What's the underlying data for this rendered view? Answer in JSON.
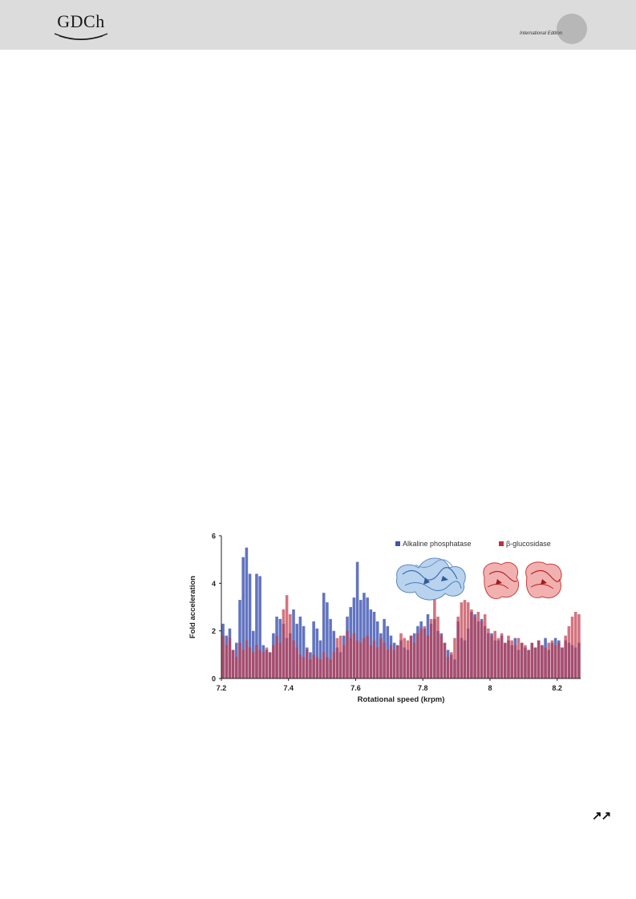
{
  "header": {
    "logo_text": "GDCh",
    "edition": "International Edition"
  },
  "footer": {
    "arrows": "↗↗"
  },
  "colors": {
    "blue": "#5468b8",
    "red": "#c43a48",
    "header_bg": "#dcdcdc"
  },
  "chart_data": {
    "type": "bar",
    "xlabel": "Rotational speed (krpm)",
    "ylabel": "Fold acceleration",
    "xlim": [
      7.2,
      8.27
    ],
    "ylim": [
      0,
      6
    ],
    "x_ticks": [
      "7.2",
      "7.4",
      "7.6",
      "7.8",
      "8",
      "8.2"
    ],
    "y_ticks": [
      "0",
      "2",
      "4",
      "6"
    ],
    "grid": false,
    "legend_position": "top-right",
    "series": [
      {
        "name": "Alkaline phosphatase",
        "color": "#5468b8",
        "x": [
          7.2,
          7.21,
          7.22,
          7.23,
          7.24,
          7.25,
          7.26,
          7.27,
          7.28,
          7.29,
          7.3,
          7.31,
          7.32,
          7.33,
          7.34,
          7.35,
          7.36,
          7.37,
          7.38,
          7.39,
          7.4,
          7.41,
          7.42,
          7.43,
          7.44,
          7.45,
          7.46,
          7.47,
          7.48,
          7.49,
          7.5,
          7.51,
          7.52,
          7.53,
          7.54,
          7.55,
          7.56,
          7.57,
          7.58,
          7.59,
          7.6,
          7.61,
          7.62,
          7.63,
          7.64,
          7.65,
          7.66,
          7.67,
          7.68,
          7.69,
          7.7,
          7.71,
          7.72,
          7.73,
          7.74,
          7.75,
          7.76,
          7.77,
          7.78,
          7.79,
          7.8,
          7.81,
          7.82,
          7.83,
          7.84,
          7.85,
          7.86,
          7.87,
          7.88,
          7.89,
          7.9,
          7.91,
          7.92,
          7.93,
          7.94,
          7.95,
          7.96,
          7.97,
          7.98,
          7.99,
          8.0,
          8.01,
          8.02,
          8.03,
          8.04,
          8.05,
          8.06,
          8.07,
          8.08,
          8.09,
          8.1,
          8.11,
          8.12,
          8.13,
          8.14,
          8.15,
          8.16,
          8.17,
          8.18,
          8.19,
          8.2,
          8.21,
          8.22,
          8.23,
          8.24,
          8.25,
          8.26
        ],
        "values": [
          2.3,
          1.8,
          2.1,
          1.2,
          1.5,
          3.3,
          5.1,
          5.5,
          4.4,
          2.0,
          4.4,
          4.3,
          1.4,
          1.2,
          1.1,
          1.9,
          2.6,
          2.5,
          2.3,
          1.7,
          1.9,
          2.9,
          2.3,
          2.6,
          2.2,
          1.3,
          1.1,
          2.4,
          2.1,
          1.6,
          3.6,
          3.2,
          2.5,
          2.0,
          1.3,
          1.1,
          1.8,
          2.6,
          3.0,
          3.4,
          4.9,
          3.3,
          3.6,
          3.4,
          2.9,
          2.8,
          2.4,
          1.9,
          2.5,
          2.2,
          1.8,
          1.5,
          1.4,
          1.6,
          1.3,
          1.2,
          1.8,
          1.9,
          2.2,
          2.4,
          2.1,
          2.7,
          2.3,
          2.5,
          2.0,
          1.9,
          1.5,
          1.2,
          1.0,
          0.8,
          2.4,
          1.7,
          1.6,
          2.1,
          2.8,
          2.7,
          2.4,
          2.5,
          2.2,
          1.9,
          1.9,
          1.6,
          1.6,
          1.8,
          1.5,
          1.6,
          1.4,
          1.7,
          1.2,
          1.5,
          1.3,
          1.2,
          1.5,
          1.3,
          1.6,
          1.4,
          1.7,
          1.2,
          1.5,
          1.7,
          1.6,
          1.3,
          1.6,
          1.5,
          1.4,
          1.3,
          1.5
        ]
      },
      {
        "name": "β-glucosidase",
        "color": "#c43a48",
        "x": [
          7.2,
          7.21,
          7.22,
          7.23,
          7.24,
          7.25,
          7.26,
          7.27,
          7.28,
          7.29,
          7.3,
          7.31,
          7.32,
          7.33,
          7.34,
          7.35,
          7.36,
          7.37,
          7.38,
          7.39,
          7.4,
          7.41,
          7.42,
          7.43,
          7.44,
          7.45,
          7.46,
          7.47,
          7.48,
          7.49,
          7.5,
          7.51,
          7.52,
          7.53,
          7.54,
          7.55,
          7.56,
          7.57,
          7.58,
          7.59,
          7.6,
          7.61,
          7.62,
          7.63,
          7.64,
          7.65,
          7.66,
          7.67,
          7.68,
          7.69,
          7.7,
          7.71,
          7.72,
          7.73,
          7.74,
          7.75,
          7.76,
          7.77,
          7.78,
          7.79,
          7.8,
          7.81,
          7.82,
          7.83,
          7.84,
          7.85,
          7.86,
          7.87,
          7.88,
          7.89,
          7.9,
          7.91,
          7.92,
          7.93,
          7.94,
          7.95,
          7.96,
          7.97,
          7.98,
          7.99,
          8.0,
          8.01,
          8.02,
          8.03,
          8.04,
          8.05,
          8.06,
          8.07,
          8.08,
          8.09,
          8.1,
          8.11,
          8.12,
          8.13,
          8.14,
          8.15,
          8.16,
          8.17,
          8.18,
          8.19,
          8.2,
          8.21,
          8.22,
          8.23,
          8.24,
          8.25,
          8.26
        ],
        "values": [
          1.8,
          1.4,
          1.7,
          1.2,
          0.9,
          1.5,
          1.2,
          1.6,
          1.3,
          1.1,
          1.4,
          1.2,
          1.1,
          1.3,
          1.1,
          1.4,
          1.8,
          1.5,
          2.9,
          3.5,
          2.7,
          1.6,
          1.3,
          1.0,
          0.9,
          1.2,
          0.8,
          1.0,
          0.9,
          0.8,
          1.1,
          0.9,
          0.8,
          1.1,
          1.7,
          1.8,
          1.4,
          2.0,
          1.7,
          1.9,
          1.6,
          1.5,
          1.7,
          1.8,
          1.4,
          1.6,
          1.3,
          1.7,
          1.5,
          1.2,
          1.4,
          1.2,
          1.4,
          1.9,
          1.7,
          1.6,
          1.8,
          1.5,
          1.9,
          2.1,
          2.2,
          1.8,
          2.5,
          3.6,
          2.6,
          1.8,
          1.5,
          0.9,
          1.1,
          1.7,
          2.6,
          3.2,
          3.3,
          3.2,
          2.9,
          2.6,
          2.8,
          2.4,
          2.7,
          2.1,
          1.8,
          2.0,
          1.7,
          1.9,
          1.5,
          1.8,
          1.6,
          1.4,
          1.7,
          1.5,
          1.4,
          1.2,
          1.5,
          1.3,
          1.6,
          1.4,
          1.3,
          1.5,
          1.6,
          1.4,
          1.5,
          1.3,
          1.8,
          2.2,
          2.6,
          2.8,
          2.7
        ]
      }
    ]
  }
}
